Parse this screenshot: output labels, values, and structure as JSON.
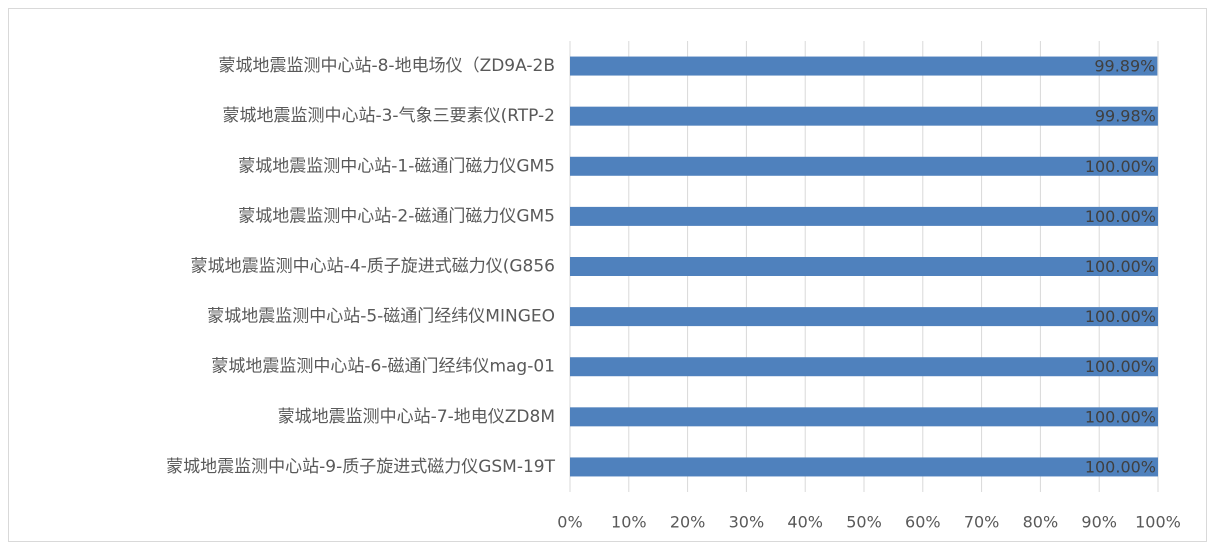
{
  "chart_data": {
    "type": "barh",
    "categories": [
      "蒙城地震监测中心站-8-地电场仪（ZD9A-2B",
      "蒙城地震监测中心站-3-气象三要素仪(RTP-2",
      "蒙城地震监测中心站-1-磁通门磁力仪GM5",
      "蒙城地震监测中心站-2-磁通门磁力仪GM5",
      "蒙城地震监测中心站-4-质子旋进式磁力仪(G856",
      "蒙城地震监测中心站-5-磁通门经纬仪MINGEO",
      "蒙城地震监测中心站-6-磁通门经纬仪mag-01",
      "蒙城地震监测中心站-7-地电仪ZD8M",
      "蒙城地震监测中心站-9-质子旋进式磁力仪GSM-19T"
    ],
    "values": [
      99.89,
      99.98,
      100,
      100,
      100,
      100,
      100,
      100,
      100
    ],
    "value_labels": [
      "99.89%",
      "99.98%",
      "100.00%",
      "100.00%",
      "100.00%",
      "100.00%",
      "100.00%",
      "100.00%",
      "100.00%"
    ],
    "color": "#4f81bd",
    "xlim": [
      0,
      100
    ],
    "xticks": [
      {
        "value": 0,
        "label": "0%"
      },
      {
        "value": 10,
        "label": "10%"
      },
      {
        "value": 20,
        "label": "20%"
      },
      {
        "value": 30,
        "label": "30%"
      },
      {
        "value": 40,
        "label": "40%"
      },
      {
        "value": 50,
        "label": "50%"
      },
      {
        "value": 60,
        "label": "60%"
      },
      {
        "value": 70,
        "label": "70%"
      },
      {
        "value": 80,
        "label": "80%"
      },
      {
        "value": 90,
        "label": "90%"
      },
      {
        "value": 100,
        "label": "100%"
      }
    ],
    "grid": true
  }
}
